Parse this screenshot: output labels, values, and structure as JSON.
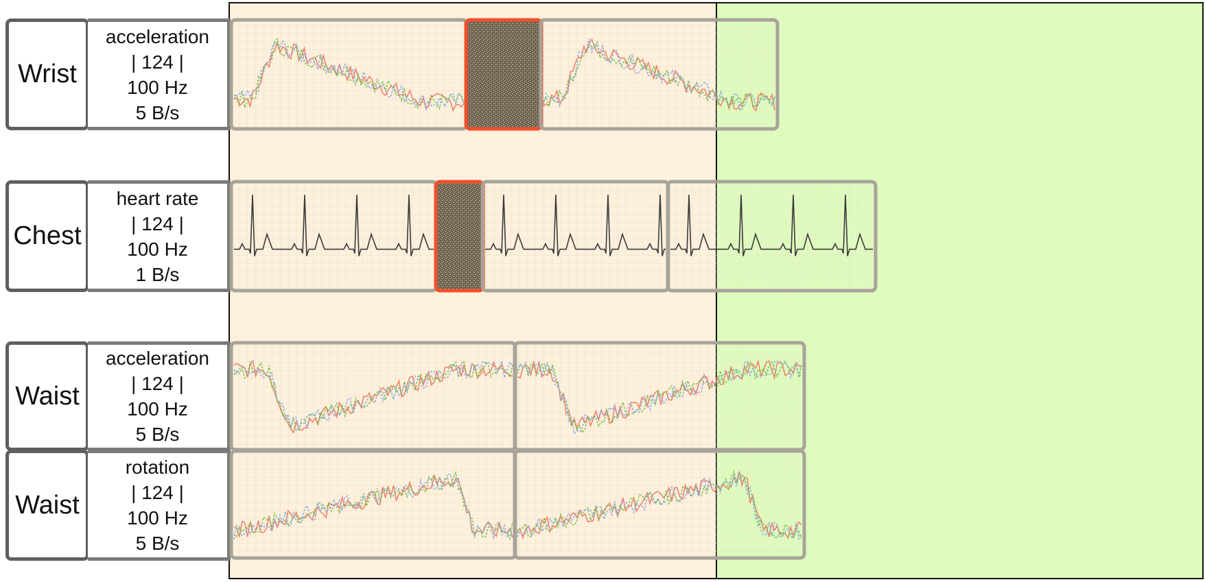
{
  "colors": {
    "past_region": "#fdf0dc",
    "future_region": "#defbbe",
    "packet_border": "#a8a39a",
    "loss_border": "#f0502a",
    "loss_fill": "#6e6250",
    "accel_x": "#f07860",
    "accel_y": "#6fbf4a",
    "accel_z": "#8aa6e0",
    "ecg": "#3a3a3a"
  },
  "streams": [
    {
      "location": "Wrist",
      "meta": {
        "sensor": "acceleration",
        "count": "| 124 |",
        "rate": "100 Hz",
        "bandwidth": "5 B/s"
      },
      "signal": "motion-burst",
      "packets": [
        "received",
        "lost",
        "received"
      ]
    },
    {
      "location": "Chest",
      "meta": {
        "sensor": "heart rate",
        "count": "| 124 |",
        "rate": "100 Hz",
        "bandwidth": "1 B/s"
      },
      "signal": "ecg",
      "packets": [
        "received",
        "lost",
        "received",
        "received"
      ]
    },
    {
      "location": "Waist",
      "meta": {
        "sensor": "acceleration",
        "count": "| 124 |",
        "rate": "100 Hz",
        "bandwidth": "5 B/s"
      },
      "signal": "motion-dip",
      "packets": [
        "received",
        "received",
        "received"
      ]
    },
    {
      "location": "Waist",
      "meta": {
        "sensor": "rotation",
        "count": "| 124 |",
        "rate": "100 Hz",
        "bandwidth": "5 B/s"
      },
      "signal": "motion-ramp",
      "packets": [
        "received",
        "received",
        "received"
      ]
    }
  ]
}
